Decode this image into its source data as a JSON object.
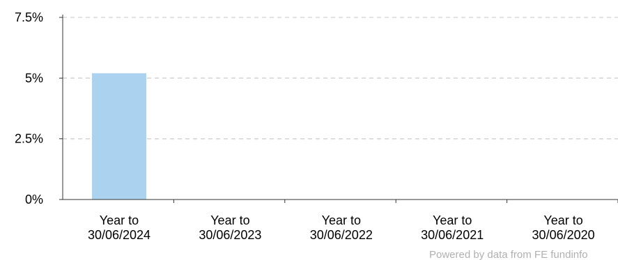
{
  "chart_data": {
    "type": "bar",
    "categories": [
      [
        "Year to",
        "30/06/2024"
      ],
      [
        "Year to",
        "30/06/2023"
      ],
      [
        "Year to",
        "30/06/2022"
      ],
      [
        "Year to",
        "30/06/2021"
      ],
      [
        "Year to",
        "30/06/2020"
      ]
    ],
    "values": [
      5.2,
      null,
      null,
      null,
      null
    ],
    "y_ticks": [
      {
        "value": 0,
        "label": "0%"
      },
      {
        "value": 2.5,
        "label": "2.5%"
      },
      {
        "value": 5,
        "label": "5%"
      },
      {
        "value": 7.5,
        "label": "7.5%"
      }
    ],
    "ylim": [
      0,
      7.5
    ],
    "grid": true,
    "grid_style": "dashed",
    "bar_color": "#abd3f0",
    "grid_color": "#d0d0d0",
    "axis_color": "#333333",
    "title": "",
    "xlabel": "",
    "ylabel": ""
  },
  "attribution": "Powered by data from FE fundinfo"
}
